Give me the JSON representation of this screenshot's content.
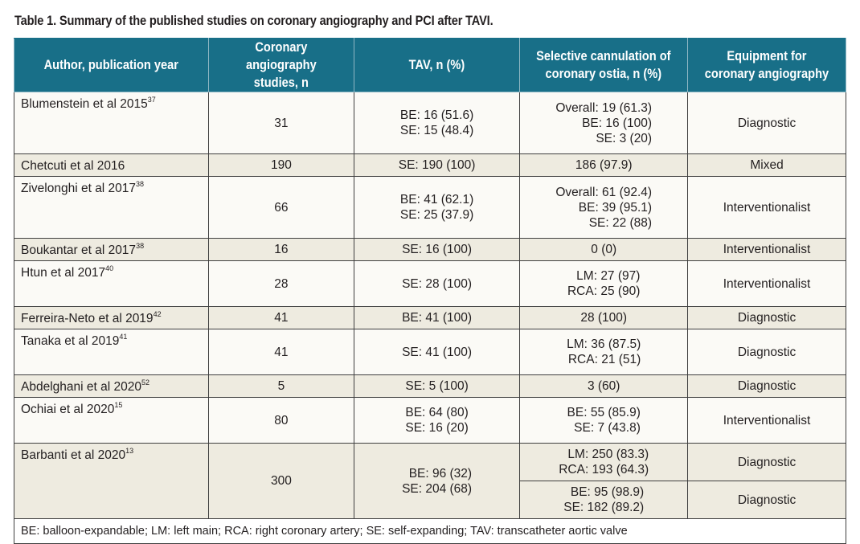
{
  "caption": "Table 1. Summary of the published studies on coronary angiography and PCI after TAVI.",
  "headers": [
    "Author, publication year",
    "Coronary angiography studies, n",
    "TAV, n (%)",
    "Selective cannulation of coronary ostia, n (%)",
    "Equipment for coronary angiography"
  ],
  "rows": [
    {
      "author": "Blumenstein et al 2015",
      "ref": "37",
      "studies": "31",
      "tav": [
        "BE: 16 (51.6)",
        "SE: 15 (48.4)"
      ],
      "cannulation": [
        "Overall: 19 (61.3)",
        "BE: 16 (100)",
        "SE: 3 (20)"
      ],
      "equipment": "Diagnostic"
    },
    {
      "author": "Chetcuti et al 2016",
      "ref": "",
      "studies": "190",
      "tav": [
        "SE: 190 (100)"
      ],
      "cannulation": [
        "186 (97.9)"
      ],
      "equipment": "Mixed"
    },
    {
      "author": "Zivelonghi et al 2017",
      "ref": "38",
      "studies": "66",
      "tav": [
        "BE: 41 (62.1)",
        "SE: 25 (37.9)"
      ],
      "cannulation": [
        "Overall: 61 (92.4)",
        "BE: 39 (95.1)",
        "SE: 22 (88)"
      ],
      "equipment": "Interventionalist"
    },
    {
      "author": "Boukantar et al 2017",
      "ref": "38",
      "studies": "16",
      "tav": [
        "SE: 16 (100)"
      ],
      "cannulation": [
        "0 (0)"
      ],
      "equipment": "Interventionalist"
    },
    {
      "author": "Htun et al 2017",
      "ref": "40",
      "studies": "28",
      "tav": [
        "SE: 28 (100)"
      ],
      "cannulation": [
        "LM: 27 (97)",
        "RCA: 25 (90)"
      ],
      "equipment": "Interventionalist"
    },
    {
      "author": "Ferreira-Neto et al 2019",
      "ref": "42",
      "studies": "41",
      "tav": [
        "BE: 41 (100)"
      ],
      "cannulation": [
        "28 (100)"
      ],
      "equipment": "Diagnostic"
    },
    {
      "author": "Tanaka et al 2019",
      "ref": "41",
      "studies": "41",
      "tav": [
        "SE: 41 (100)"
      ],
      "cannulation": [
        "LM: 36 (87.5)",
        "RCA: 21 (51)"
      ],
      "equipment": "Diagnostic"
    },
    {
      "author": "Abdelghani et al 2020",
      "ref": "52",
      "studies": "5",
      "tav": [
        "SE: 5 (100)"
      ],
      "cannulation": [
        "3 (60)"
      ],
      "equipment": "Diagnostic"
    },
    {
      "author": "Ochiai et al 2020",
      "ref": "15",
      "studies": "80",
      "tav": [
        "BE: 64 (80)",
        "SE: 16 (20)"
      ],
      "cannulation": [
        "BE: 55 (85.9)",
        "SE: 7 (43.8)"
      ],
      "equipment": "Interventionalist"
    }
  ],
  "barbanti": {
    "author": "Barbanti et al 2020",
    "ref": "13",
    "studies": "300",
    "tav": [
      "BE: 96 (32)",
      "SE: 204 (68)"
    ],
    "sub": [
      {
        "cannulation": [
          "LM: 250 (83.3)",
          "RCA: 193 (64.3)"
        ],
        "equipment": "Diagnostic"
      },
      {
        "cannulation": [
          "BE: 95 (98.9)",
          "SE: 182 (89.2)"
        ],
        "equipment": "Diagnostic"
      }
    ]
  },
  "footnote": "BE: balloon-expandable; LM: left main; RCA: right coronary artery; SE: self-expanding; TAV: transcatheter aortic valve",
  "colors": {
    "header_bg": "#186f88",
    "row_light": "#fbfaf6",
    "row_shaded": "#eeebe0"
  }
}
